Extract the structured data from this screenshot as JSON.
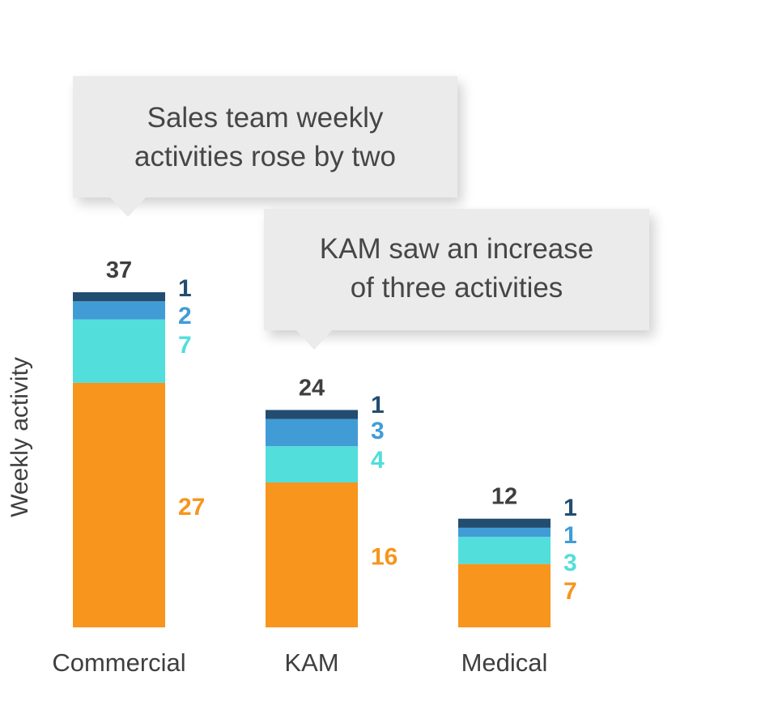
{
  "chart_data": {
    "type": "bar",
    "stacked": true,
    "categories": [
      "Commercial",
      "KAM",
      "Medical"
    ],
    "series": [
      {
        "name": "segment-1",
        "color": "#f7951d",
        "values": [
          27,
          16,
          7
        ]
      },
      {
        "name": "segment-2",
        "color": "#52dedb",
        "values": [
          7,
          4,
          3
        ]
      },
      {
        "name": "segment-3",
        "color": "#419cd6",
        "values": [
          2,
          3,
          1
        ]
      },
      {
        "name": "segment-4",
        "color": "#234d70",
        "values": [
          1,
          1,
          1
        ]
      }
    ],
    "totals": [
      37,
      24,
      12
    ],
    "title": "",
    "xlabel": "",
    "ylabel": "Weekly activity",
    "ylim": [
      0,
      37
    ],
    "grid": false,
    "legend": "none",
    "total_label_color": "#3f3f3f",
    "annotations": [
      {
        "target": "Commercial",
        "lines": [
          "Sales team weekly",
          "activities rose by two"
        ]
      },
      {
        "target": "KAM",
        "lines": [
          "KAM saw an increase",
          "of three activities"
        ]
      }
    ]
  }
}
